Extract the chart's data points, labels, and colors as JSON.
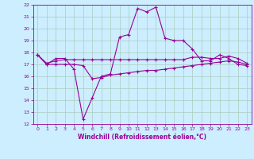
{
  "xlabel": "Windchill (Refroidissement éolien,°C)",
  "background_color": "#cceeff",
  "grid_color": "#aaccbb",
  "line_color": "#990099",
  "xlim": [
    -0.5,
    23.5
  ],
  "ylim": [
    12,
    22
  ],
  "xticks": [
    0,
    1,
    2,
    3,
    4,
    5,
    6,
    7,
    8,
    9,
    10,
    11,
    12,
    13,
    14,
    15,
    16,
    17,
    18,
    19,
    20,
    21,
    22,
    23
  ],
  "yticks": [
    12,
    13,
    14,
    15,
    16,
    17,
    18,
    19,
    20,
    21,
    22
  ],
  "series1_x": [
    0,
    1,
    2,
    3,
    4,
    5,
    6,
    7,
    8,
    9,
    10,
    11,
    12,
    13,
    14,
    15,
    16,
    17,
    18,
    19,
    20,
    21,
    22,
    23
  ],
  "series1_y": [
    17.8,
    17.0,
    17.5,
    17.5,
    16.6,
    12.4,
    14.2,
    16.0,
    16.2,
    19.3,
    19.5,
    21.7,
    21.4,
    21.8,
    19.2,
    19.0,
    19.0,
    18.3,
    17.3,
    17.3,
    17.8,
    17.5,
    17.0,
    16.9
  ],
  "series2_x": [
    0,
    1,
    2,
    3,
    4,
    5,
    6,
    7,
    8,
    9,
    10,
    11,
    12,
    13,
    14,
    15,
    16,
    17,
    18,
    19,
    20,
    21,
    22,
    23
  ],
  "series2_y": [
    17.8,
    17.1,
    17.3,
    17.4,
    17.4,
    17.4,
    17.4,
    17.4,
    17.4,
    17.4,
    17.4,
    17.4,
    17.4,
    17.4,
    17.4,
    17.4,
    17.4,
    17.6,
    17.6,
    17.5,
    17.5,
    17.7,
    17.5,
    17.1
  ],
  "series3_x": [
    0,
    1,
    2,
    3,
    4,
    5,
    6,
    7,
    8,
    9,
    10,
    11,
    12,
    13,
    14,
    15,
    16,
    17,
    18,
    19,
    20,
    21,
    22,
    23
  ],
  "series3_y": [
    17.8,
    17.0,
    17.0,
    17.0,
    17.0,
    16.9,
    15.8,
    15.9,
    16.1,
    16.2,
    16.3,
    16.4,
    16.5,
    16.5,
    16.6,
    16.7,
    16.8,
    16.9,
    17.0,
    17.1,
    17.2,
    17.3,
    17.2,
    17.0
  ]
}
